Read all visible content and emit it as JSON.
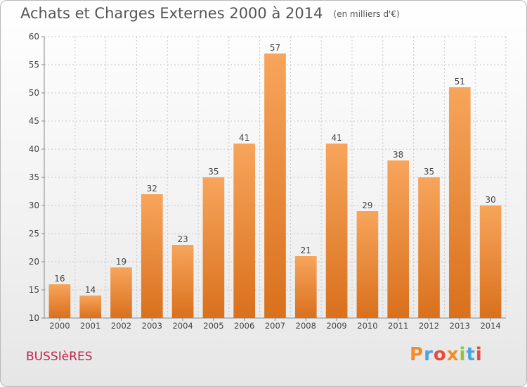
{
  "chart_data": {
    "type": "bar",
    "title": "Achats et Charges Externes 2000 à 2014",
    "subtitle": "(en milliers d'€)",
    "categories": [
      "2000",
      "2001",
      "2002",
      "2003",
      "2004",
      "2005",
      "2006",
      "2007",
      "2008",
      "2009",
      "2010",
      "2011",
      "2012",
      "2013",
      "2014"
    ],
    "values": [
      16,
      14,
      19,
      32,
      23,
      35,
      41,
      57,
      21,
      41,
      29,
      38,
      35,
      51,
      30
    ],
    "ylim": [
      10,
      60
    ],
    "yticks": [
      10,
      15,
      20,
      25,
      30,
      35,
      40,
      45,
      50,
      55,
      60
    ],
    "grid": true,
    "legend": "none",
    "bar_color_top": "#f7a55c",
    "bar_color_bottom": "#d9701c"
  },
  "commune": "BUSSIèRES",
  "logo": {
    "text": "Proxiti",
    "letter_colors": [
      "#f28c28",
      "#4aa3df",
      "#e84b3a",
      "#f28c28",
      "#8cc63f",
      "#4aa3df",
      "#e84b3a"
    ]
  }
}
